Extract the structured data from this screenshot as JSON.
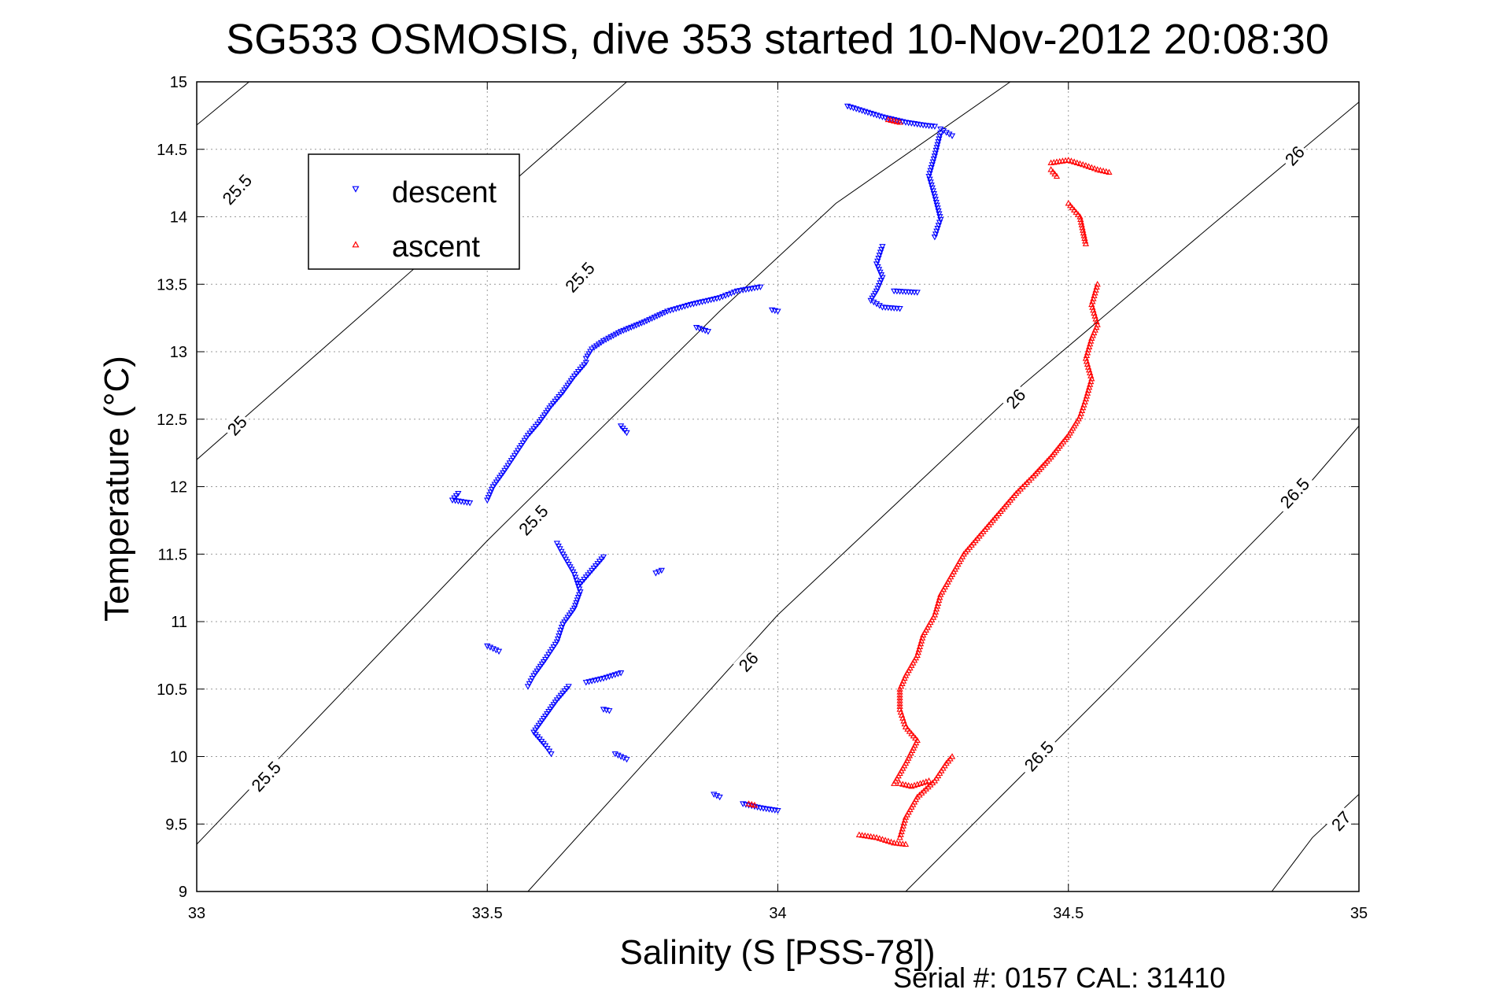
{
  "chart_data": {
    "type": "scatter",
    "title": "SG533 OSMOSIS, dive 353 started 10-Nov-2012 20:08:30",
    "xlabel": "Salinity (S [PSS-78])",
    "ylabel": "Temperature (°C)",
    "xlim": [
      33,
      35
    ],
    "ylim": [
      9,
      15
    ],
    "x_ticks": [
      33,
      33.5,
      34,
      34.5,
      35
    ],
    "x_tick_labels": [
      "33",
      "33.5",
      "34",
      "34.5",
      "35"
    ],
    "y_ticks": [
      9,
      9.5,
      10,
      10.5,
      11,
      11.5,
      12,
      12.5,
      13,
      13.5,
      14,
      14.5,
      15
    ],
    "y_tick_labels": [
      "9",
      "9.5",
      "10",
      "10.5",
      "11",
      "11.5",
      "12",
      "12.5",
      "13",
      "13.5",
      "14",
      "14.5",
      "15"
    ],
    "grid": true,
    "legend_position": "top-left",
    "footer": "Serial #: 0157  CAL: 31410",
    "density_contours": [
      {
        "level": 25,
        "label": "25",
        "points": [
          [
            33.0,
            14.68
          ],
          [
            33.09,
            15.0
          ]
        ]
      },
      {
        "level": 25,
        "label": "25",
        "points": [
          [
            33.0,
            12.2
          ],
          [
            33.74,
            15.0
          ]
        ]
      },
      {
        "level": 25.5,
        "label": "25.5",
        "points": [
          [
            33.0,
            9.35
          ],
          [
            33.5,
            11.6
          ],
          [
            33.9,
            13.3
          ],
          [
            34.1,
            14.1
          ],
          [
            34.4,
            15.0
          ]
        ]
      },
      {
        "level": 26,
        "label": "26",
        "points": [
          [
            33.57,
            9.0
          ],
          [
            34.0,
            11.05
          ],
          [
            34.42,
            12.75
          ],
          [
            34.75,
            13.95
          ],
          [
            35.0,
            14.85
          ]
        ]
      },
      {
        "level": 26.5,
        "label": "26.5",
        "points": [
          [
            34.22,
            9.0
          ],
          [
            34.58,
            10.55
          ],
          [
            34.9,
            11.95
          ],
          [
            35.0,
            12.45
          ]
        ]
      },
      {
        "level": 27,
        "label": "27",
        "points": [
          [
            34.85,
            9.0
          ],
          [
            34.92,
            9.4
          ],
          [
            35.0,
            9.72
          ]
        ]
      }
    ],
    "contour_labels": [
      {
        "text": "25.5",
        "x": 33.07,
        "y": 14.2
      },
      {
        "text": "25",
        "x": 33.07,
        "y": 12.45
      },
      {
        "text": "25.5",
        "x": 33.66,
        "y": 13.55
      },
      {
        "text": "25.5",
        "x": 33.58,
        "y": 11.75
      },
      {
        "text": "25.5",
        "x": 33.12,
        "y": 9.85
      },
      {
        "text": "26",
        "x": 34.41,
        "y": 12.65
      },
      {
        "text": "26",
        "x": 33.95,
        "y": 10.7
      },
      {
        "text": "26",
        "x": 34.89,
        "y": 14.45
      },
      {
        "text": "26.5",
        "x": 34.45,
        "y": 10.0
      },
      {
        "text": "26.5",
        "x": 34.89,
        "y": 11.95
      },
      {
        "text": "27",
        "x": 34.97,
        "y": 9.52
      }
    ],
    "series": [
      {
        "name": "descent",
        "color": "#0000ff",
        "marker": "triangle-down",
        "segments": [
          [
            [
              33.97,
              13.48
            ],
            [
              33.93,
              13.45
            ],
            [
              33.9,
              13.4
            ],
            [
              33.85,
              13.35
            ],
            [
              33.81,
              13.3
            ],
            [
              33.77,
              13.22
            ],
            [
              33.73,
              13.15
            ],
            [
              33.7,
              13.08
            ],
            [
              33.68,
              13.02
            ],
            [
              33.67,
              12.95
            ]
          ],
          [
            [
              33.67,
              12.92
            ],
            [
              33.65,
              12.82
            ],
            [
              33.63,
              12.7
            ],
            [
              33.61,
              12.6
            ],
            [
              33.59,
              12.48
            ],
            [
              33.57,
              12.38
            ],
            [
              33.55,
              12.25
            ],
            [
              33.53,
              12.12
            ],
            [
              33.51,
              12.0
            ],
            [
              33.5,
              11.9
            ]
          ],
          [
            [
              33.62,
              11.58
            ],
            [
              33.63,
              11.5
            ],
            [
              33.65,
              11.35
            ],
            [
              33.66,
              11.22
            ],
            [
              33.65,
              11.1
            ],
            [
              33.63,
              10.98
            ],
            [
              33.62,
              10.85
            ],
            [
              33.6,
              10.72
            ],
            [
              33.58,
              10.6
            ],
            [
              33.57,
              10.52
            ]
          ],
          [
            [
              33.7,
              11.48
            ],
            [
              33.68,
              11.38
            ],
            [
              33.66,
              11.28
            ]
          ],
          [
            [
              33.64,
              10.52
            ],
            [
              33.62,
              10.42
            ],
            [
              33.6,
              10.3
            ],
            [
              33.58,
              10.18
            ],
            [
              33.6,
              10.08
            ],
            [
              33.61,
              10.02
            ]
          ],
          [
            [
              33.73,
              10.62
            ],
            [
              33.7,
              10.58
            ],
            [
              33.67,
              10.55
            ]
          ],
          [
            [
              34.12,
              14.82
            ],
            [
              34.15,
              14.78
            ],
            [
              34.18,
              14.74
            ],
            [
              34.22,
              14.7
            ],
            [
              34.25,
              14.68
            ],
            [
              34.27,
              14.67
            ]
          ],
          [
            [
              34.28,
              14.62
            ],
            [
              34.27,
              14.45
            ],
            [
              34.26,
              14.3
            ],
            [
              34.27,
              14.15
            ],
            [
              34.28,
              13.98
            ],
            [
              34.27,
              13.85
            ]
          ],
          [
            [
              34.18,
              13.78
            ],
            [
              34.17,
              13.65
            ],
            [
              34.18,
              13.55
            ],
            [
              34.17,
              13.45
            ],
            [
              34.16,
              13.38
            ],
            [
              34.18,
              13.33
            ],
            [
              34.21,
              13.32
            ]
          ],
          [
            [
              34.3,
              14.6
            ],
            [
              34.28,
              14.65
            ]
          ],
          [
            [
              33.88,
              13.15
            ],
            [
              33.86,
              13.18
            ]
          ],
          [
            [
              33.99,
              13.31
            ],
            [
              34.0,
              13.3
            ]
          ],
          [
            [
              33.45,
              11.95
            ],
            [
              33.44,
              11.9
            ],
            [
              33.47,
              11.88
            ]
          ],
          [
            [
              33.5,
              10.82
            ],
            [
              33.52,
              10.78
            ]
          ],
          [
            [
              33.73,
              12.45
            ],
            [
              33.74,
              12.4
            ]
          ],
          [
            [
              33.8,
              11.38
            ],
            [
              33.79,
              11.36
            ]
          ],
          [
            [
              33.7,
              10.35
            ],
            [
              33.71,
              10.34
            ]
          ],
          [
            [
              33.72,
              10.02
            ],
            [
              33.74,
              9.98
            ]
          ],
          [
            [
              33.89,
              9.72
            ],
            [
              33.9,
              9.7
            ]
          ],
          [
            [
              33.94,
              9.65
            ],
            [
              33.97,
              9.62
            ],
            [
              34.0,
              9.6
            ]
          ],
          [
            [
              34.2,
              13.45
            ],
            [
              34.24,
              13.44
            ]
          ]
        ]
      },
      {
        "name": "ascent",
        "color": "#ff0000",
        "marker": "triangle-up",
        "segments": [
          [
            [
              34.21,
              9.4
            ],
            [
              34.22,
              9.55
            ],
            [
              34.24,
              9.7
            ],
            [
              34.27,
              9.82
            ],
            [
              34.29,
              9.95
            ],
            [
              34.3,
              10.0
            ]
          ],
          [
            [
              34.2,
              9.8
            ],
            [
              34.22,
              9.95
            ],
            [
              34.24,
              10.12
            ],
            [
              34.22,
              10.22
            ],
            [
              34.21,
              10.35
            ],
            [
              34.21,
              10.5
            ],
            [
              34.22,
              10.6
            ],
            [
              34.24,
              10.75
            ],
            [
              34.25,
              10.9
            ],
            [
              34.27,
              11.05
            ],
            [
              34.28,
              11.2
            ],
            [
              34.3,
              11.35
            ],
            [
              34.32,
              11.5
            ],
            [
              34.35,
              11.65
            ],
            [
              34.38,
              11.8
            ],
            [
              34.41,
              11.95
            ],
            [
              34.44,
              12.08
            ],
            [
              34.47,
              12.22
            ],
            [
              34.5,
              12.38
            ],
            [
              34.52,
              12.52
            ],
            [
              34.53,
              12.65
            ],
            [
              34.54,
              12.8
            ],
            [
              34.53,
              12.95
            ],
            [
              34.54,
              13.1
            ],
            [
              34.55,
              13.2
            ],
            [
              34.54,
              13.35
            ],
            [
              34.55,
              13.5
            ]
          ],
          [
            [
              34.53,
              13.8
            ],
            [
              34.52,
              14.0
            ],
            [
              34.5,
              14.1
            ]
          ],
          [
            [
              34.47,
              14.4
            ],
            [
              34.5,
              14.42
            ],
            [
              34.53,
              14.38
            ],
            [
              34.55,
              14.35
            ],
            [
              34.57,
              14.33
            ]
          ],
          [
            [
              34.48,
              14.3
            ],
            [
              34.47,
              14.35
            ]
          ],
          [
            [
              34.14,
              9.42
            ],
            [
              34.17,
              9.4
            ],
            [
              34.2,
              9.36
            ],
            [
              34.22,
              9.35
            ]
          ],
          [
            [
              34.21,
              9.8
            ],
            [
              34.23,
              9.78
            ],
            [
              34.26,
              9.82
            ]
          ],
          [
            [
              33.95,
              9.65
            ],
            [
              33.96,
              9.64
            ]
          ],
          [
            [
              34.19,
              14.72
            ],
            [
              34.21,
              14.7
            ]
          ]
        ]
      }
    ]
  }
}
